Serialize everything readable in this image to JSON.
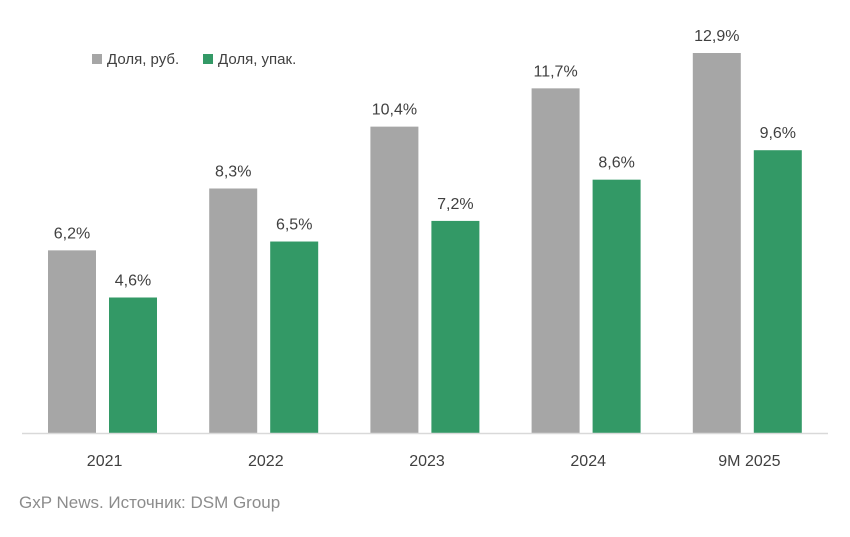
{
  "chart_data": {
    "type": "bar",
    "categories": [
      "2021",
      "2022",
      "2023",
      "2024",
      "9M 2025"
    ],
    "series": [
      {
        "name": "Доля, руб.",
        "color": "#a6a6a6",
        "values": [
          6.2,
          8.3,
          10.4,
          11.7,
          12.9
        ],
        "labels": [
          "6,2%",
          "8,3%",
          "10,4%",
          "11,7%",
          "12,9%"
        ]
      },
      {
        "name": "Доля, упак.",
        "color": "#339966",
        "values": [
          4.6,
          6.5,
          7.2,
          8.6,
          9.6
        ],
        "labels": [
          "4,6%",
          "6,5%",
          "7,2%",
          "8,6%",
          "9,6%"
        ]
      }
    ],
    "ylim": [
      0,
      12.9
    ],
    "legend_position": "top-left",
    "grid": false
  },
  "source_note": "GxP News. Источник: DSM Group",
  "colors": {
    "axis": "#d9d9d9",
    "text": "#404040",
    "source_text": "#8c8c8c"
  }
}
